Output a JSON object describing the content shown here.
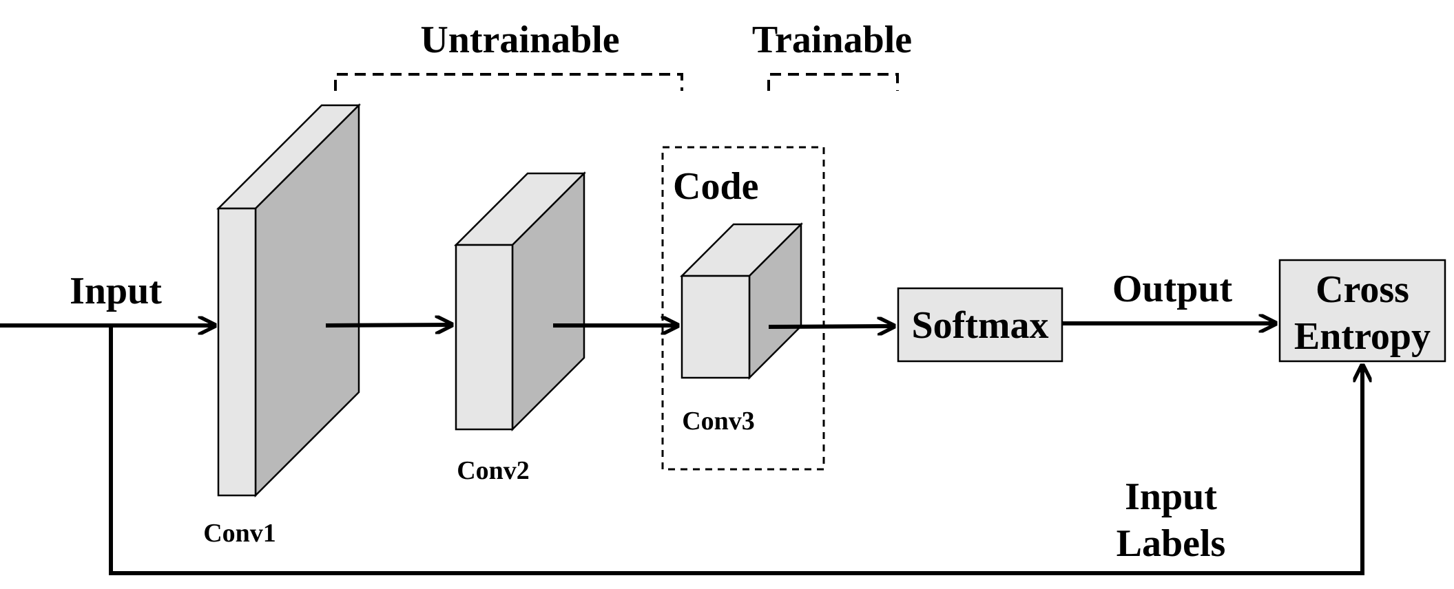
{
  "labels": {
    "untrainable": "Untrainable",
    "trainable": "Trainable",
    "code": "Code",
    "input": "Input",
    "output": "Output",
    "input_labels_line1": "Input",
    "input_labels_line2": "Labels"
  },
  "layers": {
    "conv1": "Conv1",
    "conv2": "Conv2",
    "conv3": "Conv3"
  },
  "boxes": {
    "softmax": "Softmax",
    "cross_entropy_line1": "Cross",
    "cross_entropy_line2": "Entropy"
  }
}
